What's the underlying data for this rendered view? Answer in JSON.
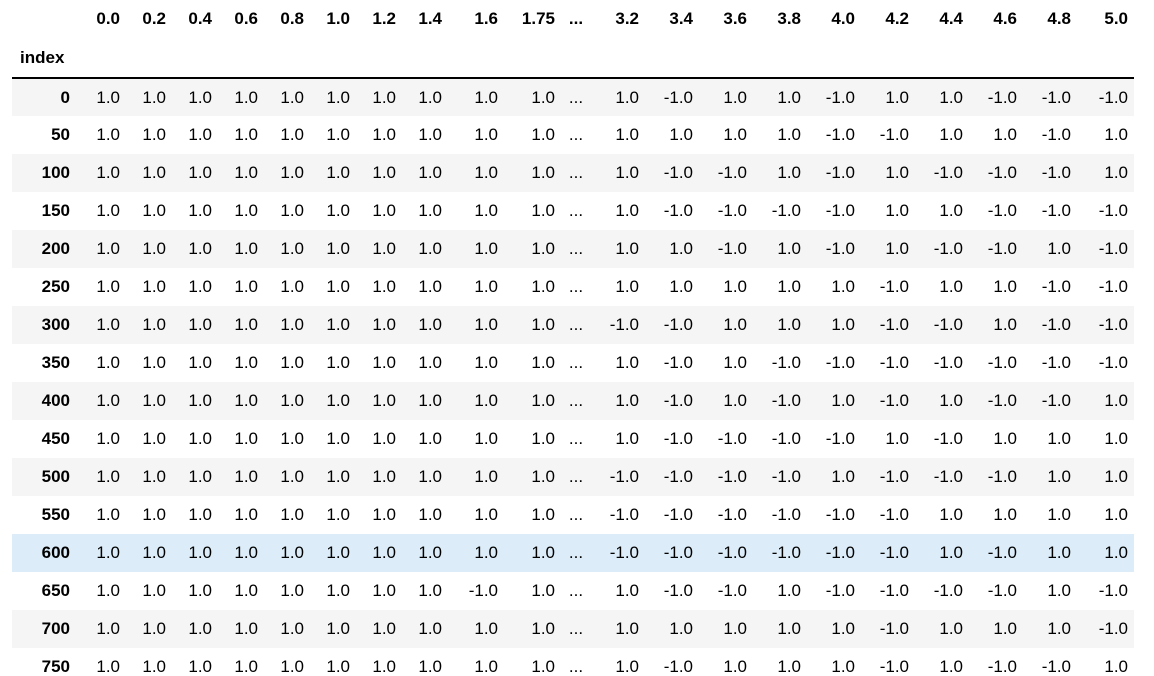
{
  "table": {
    "index_name": "index",
    "columns": [
      "0.0",
      "0.2",
      "0.4",
      "0.6",
      "0.8",
      "1.0",
      "1.2",
      "1.4",
      "1.6",
      "1.75",
      "...",
      "3.2",
      "3.4",
      "3.6",
      "3.8",
      "4.0",
      "4.2",
      "4.4",
      "4.6",
      "4.8",
      "5.0"
    ],
    "highlighted_row": "600",
    "rows": [
      {
        "index": "0",
        "values": [
          "1.0",
          "1.0",
          "1.0",
          "1.0",
          "1.0",
          "1.0",
          "1.0",
          "1.0",
          "1.0",
          "1.0",
          "...",
          "1.0",
          "-1.0",
          "1.0",
          "1.0",
          "-1.0",
          "1.0",
          "1.0",
          "-1.0",
          "-1.0",
          "-1.0"
        ]
      },
      {
        "index": "50",
        "values": [
          "1.0",
          "1.0",
          "1.0",
          "1.0",
          "1.0",
          "1.0",
          "1.0",
          "1.0",
          "1.0",
          "1.0",
          "...",
          "1.0",
          "1.0",
          "1.0",
          "1.0",
          "-1.0",
          "-1.0",
          "1.0",
          "1.0",
          "-1.0",
          "1.0"
        ]
      },
      {
        "index": "100",
        "values": [
          "1.0",
          "1.0",
          "1.0",
          "1.0",
          "1.0",
          "1.0",
          "1.0",
          "1.0",
          "1.0",
          "1.0",
          "...",
          "1.0",
          "-1.0",
          "-1.0",
          "1.0",
          "-1.0",
          "1.0",
          "-1.0",
          "-1.0",
          "-1.0",
          "1.0"
        ]
      },
      {
        "index": "150",
        "values": [
          "1.0",
          "1.0",
          "1.0",
          "1.0",
          "1.0",
          "1.0",
          "1.0",
          "1.0",
          "1.0",
          "1.0",
          "...",
          "1.0",
          "-1.0",
          "-1.0",
          "-1.0",
          "-1.0",
          "1.0",
          "1.0",
          "-1.0",
          "-1.0",
          "-1.0"
        ]
      },
      {
        "index": "200",
        "values": [
          "1.0",
          "1.0",
          "1.0",
          "1.0",
          "1.0",
          "1.0",
          "1.0",
          "1.0",
          "1.0",
          "1.0",
          "...",
          "1.0",
          "1.0",
          "-1.0",
          "1.0",
          "-1.0",
          "1.0",
          "-1.0",
          "-1.0",
          "1.0",
          "-1.0"
        ]
      },
      {
        "index": "250",
        "values": [
          "1.0",
          "1.0",
          "1.0",
          "1.0",
          "1.0",
          "1.0",
          "1.0",
          "1.0",
          "1.0",
          "1.0",
          "...",
          "1.0",
          "1.0",
          "1.0",
          "1.0",
          "1.0",
          "-1.0",
          "1.0",
          "1.0",
          "-1.0",
          "-1.0"
        ]
      },
      {
        "index": "300",
        "values": [
          "1.0",
          "1.0",
          "1.0",
          "1.0",
          "1.0",
          "1.0",
          "1.0",
          "1.0",
          "1.0",
          "1.0",
          "...",
          "-1.0",
          "-1.0",
          "1.0",
          "1.0",
          "1.0",
          "-1.0",
          "-1.0",
          "1.0",
          "-1.0",
          "-1.0"
        ]
      },
      {
        "index": "350",
        "values": [
          "1.0",
          "1.0",
          "1.0",
          "1.0",
          "1.0",
          "1.0",
          "1.0",
          "1.0",
          "1.0",
          "1.0",
          "...",
          "1.0",
          "-1.0",
          "1.0",
          "-1.0",
          "-1.0",
          "-1.0",
          "-1.0",
          "-1.0",
          "-1.0",
          "-1.0"
        ]
      },
      {
        "index": "400",
        "values": [
          "1.0",
          "1.0",
          "1.0",
          "1.0",
          "1.0",
          "1.0",
          "1.0",
          "1.0",
          "1.0",
          "1.0",
          "...",
          "1.0",
          "-1.0",
          "1.0",
          "-1.0",
          "1.0",
          "-1.0",
          "1.0",
          "-1.0",
          "-1.0",
          "1.0"
        ]
      },
      {
        "index": "450",
        "values": [
          "1.0",
          "1.0",
          "1.0",
          "1.0",
          "1.0",
          "1.0",
          "1.0",
          "1.0",
          "1.0",
          "1.0",
          "...",
          "1.0",
          "-1.0",
          "-1.0",
          "-1.0",
          "-1.0",
          "1.0",
          "-1.0",
          "1.0",
          "1.0",
          "1.0"
        ]
      },
      {
        "index": "500",
        "values": [
          "1.0",
          "1.0",
          "1.0",
          "1.0",
          "1.0",
          "1.0",
          "1.0",
          "1.0",
          "1.0",
          "1.0",
          "...",
          "-1.0",
          "-1.0",
          "-1.0",
          "-1.0",
          "1.0",
          "-1.0",
          "-1.0",
          "-1.0",
          "1.0",
          "1.0"
        ]
      },
      {
        "index": "550",
        "values": [
          "1.0",
          "1.0",
          "1.0",
          "1.0",
          "1.0",
          "1.0",
          "1.0",
          "1.0",
          "1.0",
          "1.0",
          "...",
          "-1.0",
          "-1.0",
          "-1.0",
          "-1.0",
          "-1.0",
          "-1.0",
          "1.0",
          "1.0",
          "1.0",
          "1.0"
        ]
      },
      {
        "index": "600",
        "values": [
          "1.0",
          "1.0",
          "1.0",
          "1.0",
          "1.0",
          "1.0",
          "1.0",
          "1.0",
          "1.0",
          "1.0",
          "...",
          "-1.0",
          "-1.0",
          "-1.0",
          "-1.0",
          "-1.0",
          "-1.0",
          "1.0",
          "-1.0",
          "1.0",
          "1.0"
        ]
      },
      {
        "index": "650",
        "values": [
          "1.0",
          "1.0",
          "1.0",
          "1.0",
          "1.0",
          "1.0",
          "1.0",
          "1.0",
          "-1.0",
          "1.0",
          "...",
          "1.0",
          "-1.0",
          "-1.0",
          "1.0",
          "-1.0",
          "-1.0",
          "-1.0",
          "-1.0",
          "1.0",
          "-1.0"
        ]
      },
      {
        "index": "700",
        "values": [
          "1.0",
          "1.0",
          "1.0",
          "1.0",
          "1.0",
          "1.0",
          "1.0",
          "1.0",
          "1.0",
          "1.0",
          "...",
          "1.0",
          "1.0",
          "1.0",
          "1.0",
          "1.0",
          "-1.0",
          "1.0",
          "1.0",
          "1.0",
          "-1.0"
        ]
      },
      {
        "index": "750",
        "values": [
          "1.0",
          "1.0",
          "1.0",
          "1.0",
          "1.0",
          "1.0",
          "1.0",
          "1.0",
          "1.0",
          "1.0",
          "...",
          "1.0",
          "-1.0",
          "1.0",
          "1.0",
          "1.0",
          "-1.0",
          "1.0",
          "-1.0",
          "-1.0",
          "1.0"
        ]
      }
    ]
  },
  "colors": {
    "row_stripe": "#f5f5f5",
    "row_hover": "#dcedf9",
    "header_rule": "#000000"
  }
}
